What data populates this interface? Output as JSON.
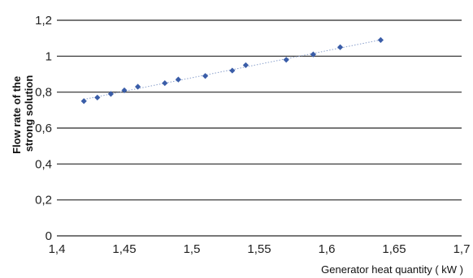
{
  "chart_data": {
    "type": "scatter",
    "title": "",
    "xlabel": "Generator heat quantity ( kW )",
    "ylabel": [
      "Flow rate of the",
      "strong solution"
    ],
    "xlim": [
      1.4,
      1.7
    ],
    "ylim": [
      0,
      1.2
    ],
    "x_ticks": [
      "1,4",
      "1,45",
      "1,5",
      "1,55",
      "1,6",
      "1,65",
      "1,7"
    ],
    "y_ticks": [
      "0",
      "0,2",
      "0,4",
      "0,6",
      "0,8",
      "1",
      "1,2"
    ],
    "grid": "horizontal",
    "trendline": "linear, dotted",
    "colors": {
      "marker": "#3a5da8",
      "trendline": "#8aa0cc",
      "grid": "#262626"
    },
    "series": [
      {
        "x": [
          1.42,
          1.43,
          1.44,
          1.45,
          1.46,
          1.48,
          1.49,
          1.51,
          1.53,
          1.54,
          1.57,
          1.59,
          1.61,
          1.64
        ],
        "y": [
          0.75,
          0.77,
          0.79,
          0.81,
          0.83,
          0.85,
          0.87,
          0.89,
          0.92,
          0.95,
          0.98,
          1.01,
          1.05,
          1.09
        ]
      }
    ]
  }
}
